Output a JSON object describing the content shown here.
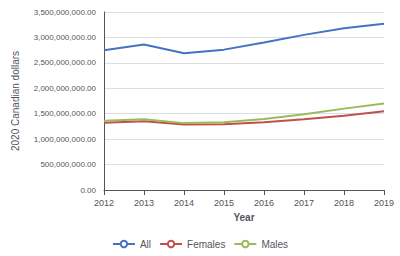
{
  "chart_data": {
    "type": "line",
    "xlabel": "Year",
    "ylabel": "2020 Canadian dollars",
    "categories": [
      "2012",
      "2013",
      "2014",
      "2015",
      "2016",
      "2017",
      "2018",
      "2019"
    ],
    "series": [
      {
        "name": "All",
        "color": "#4472C4",
        "values": [
          2750000000,
          2860000000,
          2690000000,
          2760000000,
          2900000000,
          3050000000,
          3180000000,
          3270000000
        ]
      },
      {
        "name": "Females",
        "color": "#C0504D",
        "values": [
          1320000000,
          1350000000,
          1290000000,
          1295000000,
          1330000000,
          1390000000,
          1460000000,
          1550000000
        ]
      },
      {
        "name": "Males",
        "color": "#9BBB59",
        "values": [
          1360000000,
          1390000000,
          1315000000,
          1330000000,
          1395000000,
          1490000000,
          1600000000,
          1700000000
        ]
      }
    ],
    "ylim": [
      0,
      3500000000
    ],
    "yticks": [
      {
        "value": 0,
        "label": "0.00"
      },
      {
        "value": 500000000,
        "label": "500,000,000.00"
      },
      {
        "value": 1000000000,
        "label": "1,000,000,000.00"
      },
      {
        "value": 1500000000,
        "label": "1,500,000,000.00"
      },
      {
        "value": 2000000000,
        "label": "2,000,000,000.00"
      },
      {
        "value": 2500000000,
        "label": "2,500,000,000.00"
      },
      {
        "value": 3000000000,
        "label": "3,000,000,000.00"
      },
      {
        "value": 3500000000,
        "label": "3,500,000,000.00"
      }
    ],
    "grid": true,
    "legend": "bottom"
  }
}
